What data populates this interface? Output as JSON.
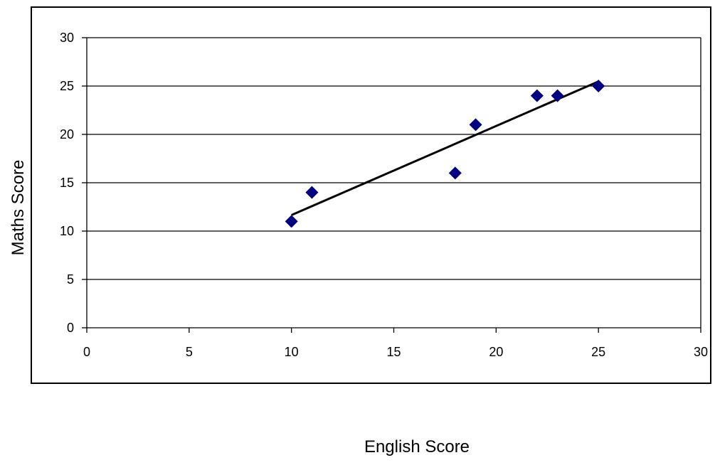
{
  "chart_data": {
    "type": "scatter",
    "title": "",
    "xlabel": "English Score",
    "ylabel": "Maths Score",
    "xlim": [
      0,
      30
    ],
    "ylim": [
      0,
      30
    ],
    "x_ticks": [
      0,
      5,
      10,
      15,
      20,
      25,
      30
    ],
    "y_ticks": [
      0,
      5,
      10,
      15,
      20,
      25,
      30
    ],
    "grid": "horizontal",
    "legend": "none",
    "series": [
      {
        "points": [
          {
            "x": 10,
            "y": 11
          },
          {
            "x": 11,
            "y": 14
          },
          {
            "x": 18,
            "y": 16
          },
          {
            "x": 19,
            "y": 21
          },
          {
            "x": 22,
            "y": 24
          },
          {
            "x": 23,
            "y": 24
          },
          {
            "x": 25,
            "y": 25
          }
        ],
        "marker": "diamond",
        "color": "#000080"
      }
    ],
    "trendline": {
      "type": "linear",
      "x_start": 10,
      "x_end": 25,
      "color": "#000000"
    }
  }
}
